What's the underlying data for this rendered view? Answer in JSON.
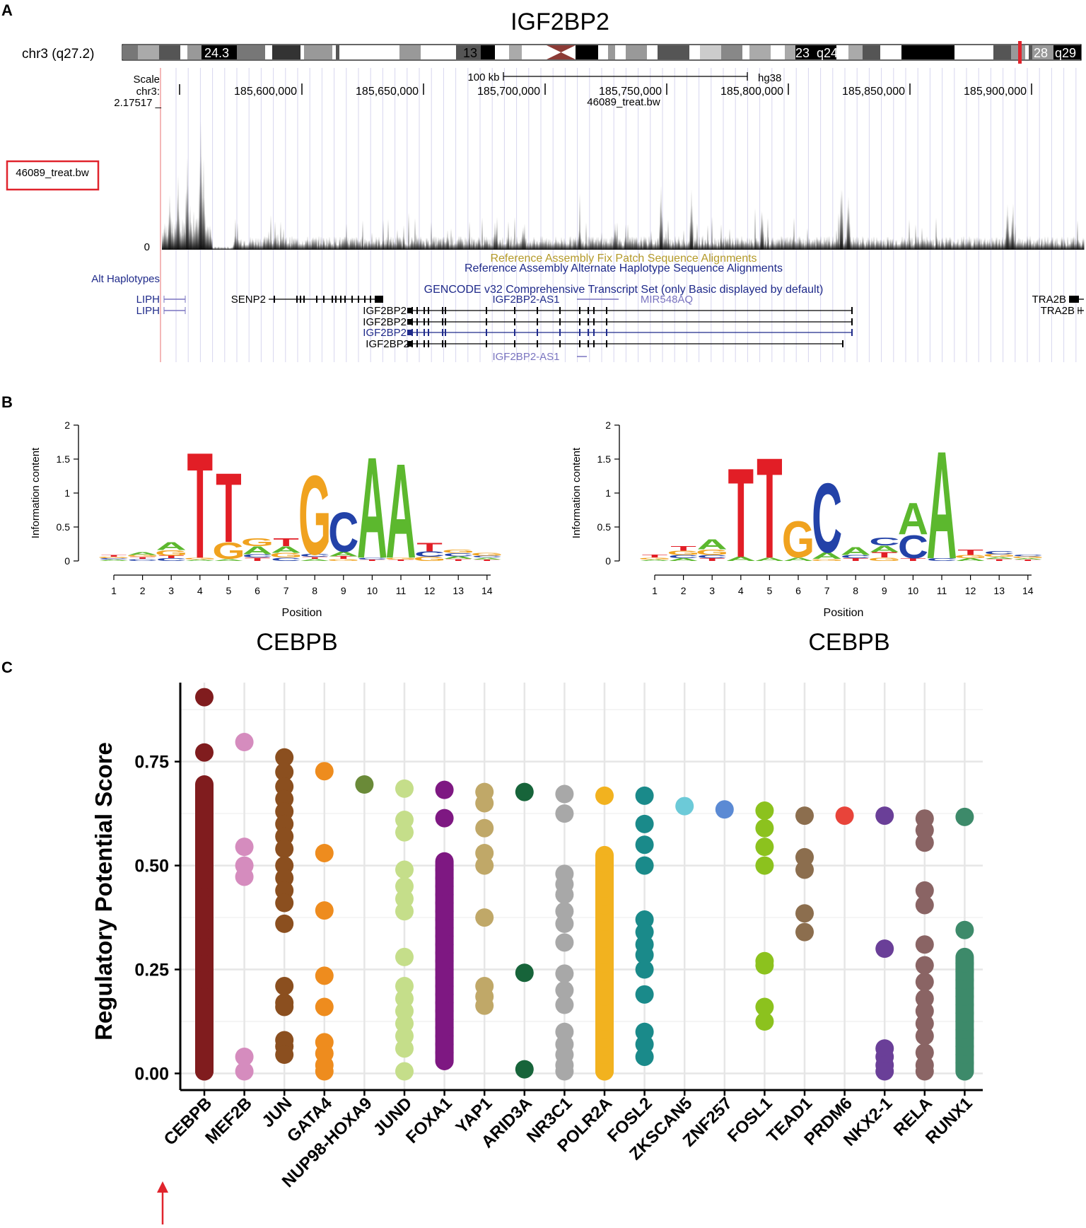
{
  "panels": {
    "a": {
      "letter": "A",
      "gene_title": "IGF2BP2",
      "locus": "chr3 (q27.2)",
      "ideogram_bands": [
        "24.3",
        "13",
        "23",
        "q24",
        "28",
        "q29"
      ],
      "scale_label": "Scale",
      "chrom_label": "chr3:",
      "scale_bar_text": "100 kb",
      "assembly": "hg38",
      "coordinates": [
        "185,600,000",
        "185,650,000",
        "185,700,000",
        "185,750,000",
        "185,800,000",
        "185,850,000",
        "185,900,000"
      ],
      "track_name": "46089_treat.bw",
      "track_max": "2.17517 _",
      "track_zero": "0",
      "highlight_label": "46089_treat.bw",
      "fix_patch_label": "Reference Assembly Fix Patch Sequence Alignments",
      "alt_haplo_label": "Reference Assembly Alternate Haplotype Sequence Alignments",
      "alt_haplotypes": "Alt Haplotypes",
      "gencode_label": "GENCODE v32 Comprehensive Transcript Set (only Basic displayed by default)",
      "genes": {
        "liph1": "LIPH",
        "liph2": "LIPH",
        "senp2": "SENP2",
        "igf2bp2_as1_top": "IGF2BP2-AS1",
        "mir548aq": "MIR548AQ",
        "igf2bp2_1": "IGF2BP2",
        "igf2bp2_2": "IGF2BP2",
        "igf2bp2_3": "IGF2BP2",
        "igf2bp2_4": "IGF2BP2",
        "igf2bp2_as1_bottom": "IGF2BP2-AS1",
        "tra2b_1": "TRA2B",
        "tra2b_2": "TRA2B"
      }
    },
    "b": {
      "letter": "B",
      "ylabel": "Information content",
      "xlabel": "Position",
      "yticks": [
        "0",
        "0.5",
        "1",
        "1.5",
        "2"
      ],
      "xticks": [
        "1",
        "2",
        "3",
        "4",
        "5",
        "6",
        "7",
        "8",
        "9",
        "10",
        "11",
        "12",
        "13",
        "14"
      ],
      "logo1_name": "CEBPB",
      "logo2_name": "CEBPB"
    },
    "c": {
      "letter": "C"
    }
  },
  "colors": {
    "A": "#5cb82e",
    "C": "#2342a8",
    "G": "#f0a21f",
    "T": "#e21e26",
    "ucsc_blue": "#1f2a8a",
    "ucsc_light_blue": "#7a74c0",
    "fix_patch": "#b49a2a",
    "highlight": "#e0242d"
  },
  "chart_data": [
    {
      "type": "sequence-logo",
      "title": "CEBPB",
      "xlabel": "Position",
      "ylabel": "Information content",
      "ylim": [
        0,
        2
      ],
      "positions": [
        {
          "pos": 1,
          "letters": [
            [
              "A",
              0.02
            ],
            [
              "C",
              0.02
            ],
            [
              "G",
              0.02
            ],
            [
              "T",
              0.03
            ]
          ]
        },
        {
          "pos": 2,
          "letters": [
            [
              "C",
              0.03
            ],
            [
              "T",
              0.03
            ],
            [
              "G",
              0.03
            ],
            [
              "A",
              0.04
            ]
          ]
        },
        {
          "pos": 3,
          "letters": [
            [
              "C",
              0.04
            ],
            [
              "T",
              0.04
            ],
            [
              "G",
              0.08
            ],
            [
              "A",
              0.12
            ]
          ]
        },
        {
          "pos": 4,
          "letters": [
            [
              "A",
              0.02
            ],
            [
              "G",
              0.03
            ],
            [
              "T",
              1.6
            ]
          ]
        },
        {
          "pos": 5,
          "letters": [
            [
              "A",
              0.03
            ],
            [
              "G",
              0.25
            ],
            [
              "T",
              1.05
            ]
          ]
        },
        {
          "pos": 6,
          "letters": [
            [
              "T",
              0.05
            ],
            [
              "C",
              0.05
            ],
            [
              "A",
              0.12
            ],
            [
              "G",
              0.12
            ]
          ]
        },
        {
          "pos": 7,
          "letters": [
            [
              "C",
              0.05
            ],
            [
              "G",
              0.07
            ],
            [
              "A",
              0.1
            ],
            [
              "T",
              0.12
            ]
          ]
        },
        {
          "pos": 8,
          "letters": [
            [
              "A",
              0.03
            ],
            [
              "T",
              0.03
            ],
            [
              "C",
              0.04
            ],
            [
              "G",
              1.2
            ]
          ]
        },
        {
          "pos": 9,
          "letters": [
            [
              "G",
              0.03
            ],
            [
              "T",
              0.04
            ],
            [
              "A",
              0.07
            ],
            [
              "C",
              0.6
            ]
          ]
        },
        {
          "pos": 10,
          "letters": [
            [
              "T",
              0.02
            ],
            [
              "C",
              0.03
            ],
            [
              "A",
              1.53
            ]
          ]
        },
        {
          "pos": 11,
          "letters": [
            [
              "T",
              0.02
            ],
            [
              "G",
              0.03
            ],
            [
              "A",
              1.43
            ]
          ]
        },
        {
          "pos": 12,
          "letters": [
            [
              "G",
              0.06
            ],
            [
              "C",
              0.08
            ],
            [
              "T",
              0.13
            ]
          ]
        },
        {
          "pos": 13,
          "letters": [
            [
              "T",
              0.03
            ],
            [
              "A",
              0.04
            ],
            [
              "C",
              0.05
            ],
            [
              "G",
              0.05
            ]
          ]
        },
        {
          "pos": 14,
          "letters": [
            [
              "T",
              0.02
            ],
            [
              "A",
              0.03
            ],
            [
              "C",
              0.03
            ],
            [
              "G",
              0.04
            ]
          ]
        }
      ]
    },
    {
      "type": "sequence-logo",
      "title": "CEBPB",
      "xlabel": "Position",
      "ylabel": "Information content",
      "ylim": [
        0,
        2
      ],
      "positions": [
        {
          "pos": 1,
          "letters": [
            [
              "A",
              0.02
            ],
            [
              "G",
              0.03
            ],
            [
              "T",
              0.04
            ]
          ]
        },
        {
          "pos": 2,
          "letters": [
            [
              "A",
              0.04
            ],
            [
              "C",
              0.05
            ],
            [
              "G",
              0.06
            ],
            [
              "T",
              0.07
            ]
          ]
        },
        {
          "pos": 3,
          "letters": [
            [
              "T",
              0.04
            ],
            [
              "C",
              0.05
            ],
            [
              "G",
              0.08
            ],
            [
              "A",
              0.15
            ]
          ]
        },
        {
          "pos": 4,
          "letters": [
            [
              "A",
              0.06
            ],
            [
              "T",
              1.35
            ]
          ]
        },
        {
          "pos": 5,
          "letters": [
            [
              "A",
              0.05
            ],
            [
              "T",
              1.52
            ]
          ]
        },
        {
          "pos": 6,
          "letters": [
            [
              "A",
              0.05
            ],
            [
              "G",
              0.55
            ]
          ]
        },
        {
          "pos": 7,
          "letters": [
            [
              "G",
              0.03
            ],
            [
              "A",
              0.1
            ],
            [
              "C",
              1.05
            ]
          ]
        },
        {
          "pos": 8,
          "letters": [
            [
              "T",
              0.04
            ],
            [
              "C",
              0.05
            ],
            [
              "A",
              0.12
            ]
          ]
        },
        {
          "pos": 9,
          "letters": [
            [
              "G",
              0.05
            ],
            [
              "T",
              0.08
            ],
            [
              "A",
              0.1
            ],
            [
              "C",
              0.12
            ]
          ]
        },
        {
          "pos": 10,
          "letters": [
            [
              "T",
              0.04
            ],
            [
              "C",
              0.35
            ],
            [
              "A",
              0.48
            ]
          ]
        },
        {
          "pos": 11,
          "letters": [
            [
              "C",
              0.04
            ],
            [
              "A",
              1.63
            ]
          ]
        },
        {
          "pos": 12,
          "letters": [
            [
              "A",
              0.04
            ],
            [
              "G",
              0.05
            ],
            [
              "T",
              0.08
            ]
          ]
        },
        {
          "pos": 13,
          "letters": [
            [
              "T",
              0.03
            ],
            [
              "A",
              0.03
            ],
            [
              "G",
              0.04
            ],
            [
              "C",
              0.05
            ]
          ]
        },
        {
          "pos": 14,
          "letters": [
            [
              "T",
              0.02
            ],
            [
              "A",
              0.02
            ],
            [
              "G",
              0.03
            ],
            [
              "C",
              0.03
            ]
          ]
        }
      ]
    },
    {
      "type": "scatter",
      "title": "",
      "xlabel": "",
      "ylabel": "Regulatory Potential Score",
      "ylim": [
        -0.04,
        0.94
      ],
      "yticks": [
        "0.00",
        "0.25",
        "0.50",
        "0.75"
      ],
      "ytick_values": [
        0,
        0.25,
        0.5,
        0.75
      ],
      "highlighted_category": "CEBPB",
      "categories": [
        "CEBPB",
        "MEF2B",
        "JUN",
        "GATA4",
        "NUP98-HOXA9",
        "JUND",
        "FOXA1",
        "YAP1",
        "ARID3A",
        "NR3C1",
        "POLR2A",
        "FOSL2",
        "ZKSCAN5",
        "ZNF257",
        "FOSL1",
        "TEAD1",
        "PRDM6",
        "NKX2-1",
        "RELA",
        "RUNX1"
      ],
      "series": [
        {
          "name": "CEBPB",
          "color": "#801c1e",
          "points": [
            0.905,
            0.772
          ],
          "ranges": [
            [
              0.005,
              0.695
            ]
          ]
        },
        {
          "name": "MEF2B",
          "color": "#d58cbe",
          "points": [
            0.797,
            0.545,
            0.5,
            0.473,
            0.04,
            0.005
          ]
        },
        {
          "name": "JUN",
          "color": "#8b4f1f",
          "points": [
            0.76,
            0.725,
            0.69,
            0.66,
            0.63,
            0.6,
            0.57,
            0.54,
            0.5,
            0.47,
            0.44,
            0.41,
            0.36,
            0.21,
            0.17,
            0.16,
            0.08,
            0.065,
            0.045
          ]
        },
        {
          "name": "GATA4",
          "color": "#ee8c1e",
          "points": [
            0.727,
            0.53,
            0.392,
            0.235,
            0.16,
            0.075,
            0.048,
            0.02,
            0.005
          ]
        },
        {
          "name": "NUP98-HOXA9",
          "color": "#6a8a38",
          "points": [
            0.695
          ]
        },
        {
          "name": "JUND",
          "color": "#c5de8a",
          "points": [
            0.685,
            0.61,
            0.58,
            0.49,
            0.45,
            0.42,
            0.39,
            0.28,
            0.21,
            0.18,
            0.15,
            0.12,
            0.09,
            0.06,
            0.005
          ]
        },
        {
          "name": "FOXA1",
          "color": "#7e1882",
          "points": [
            0.682,
            0.614
          ],
          "ranges": [
            [
              0.03,
              0.51
            ]
          ]
        },
        {
          "name": "YAP1",
          "color": "#c0a868",
          "points": [
            0.677,
            0.65,
            0.59,
            0.53,
            0.5,
            0.375,
            0.21,
            0.185,
            0.163
          ]
        },
        {
          "name": "ARID3A",
          "color": "#17643a",
          "points": [
            0.677,
            0.242,
            0.01
          ]
        },
        {
          "name": "NR3C1",
          "color": "#a8a8a8",
          "points": [
            0.672,
            0.625,
            0.48,
            0.455,
            0.43,
            0.39,
            0.36,
            0.315,
            0.24,
            0.2,
            0.165,
            0.1,
            0.07,
            0.045,
            0.02,
            0.005
          ]
        },
        {
          "name": "POLR2A",
          "color": "#f2b21f",
          "points": [
            0.668
          ],
          "ranges": [
            [
              0.005,
              0.525
            ]
          ]
        },
        {
          "name": "FOSL2",
          "color": "#1a8a8a",
          "points": [
            0.668,
            0.6,
            0.55,
            0.5,
            0.37,
            0.34,
            0.31,
            0.285,
            0.25,
            0.19,
            0.1,
            0.07,
            0.04
          ]
        },
        {
          "name": "ZKSCAN5",
          "color": "#6ccad8",
          "points": [
            0.643
          ]
        },
        {
          "name": "ZNF257",
          "color": "#5b8ad4",
          "points": [
            0.635
          ]
        },
        {
          "name": "FOSL1",
          "color": "#8cc21e",
          "points": [
            0.632,
            0.59,
            0.545,
            0.5,
            0.27,
            0.26,
            0.16,
            0.125
          ]
        },
        {
          "name": "TEAD1",
          "color": "#8c6e4e",
          "points": [
            0.62,
            0.52,
            0.49,
            0.385,
            0.34
          ]
        },
        {
          "name": "PRDM6",
          "color": "#e8443a",
          "points": [
            0.62
          ]
        },
        {
          "name": "NKX2-1",
          "color": "#6a3f98",
          "points": [
            0.62,
            0.3,
            0.06,
            0.04,
            0.02,
            0.005
          ]
        },
        {
          "name": "RELA",
          "color": "#8a6464",
          "points": [
            0.613,
            0.585,
            0.555,
            0.44,
            0.405,
            0.31,
            0.26,
            0.22,
            0.18,
            0.15,
            0.12,
            0.09,
            0.05,
            0.02,
            0.005
          ]
        },
        {
          "name": "RUNX1",
          "color": "#3d8a6a",
          "points": [
            0.617,
            0.345
          ],
          "ranges": [
            [
              0.005,
              0.28
            ]
          ]
        }
      ]
    }
  ]
}
